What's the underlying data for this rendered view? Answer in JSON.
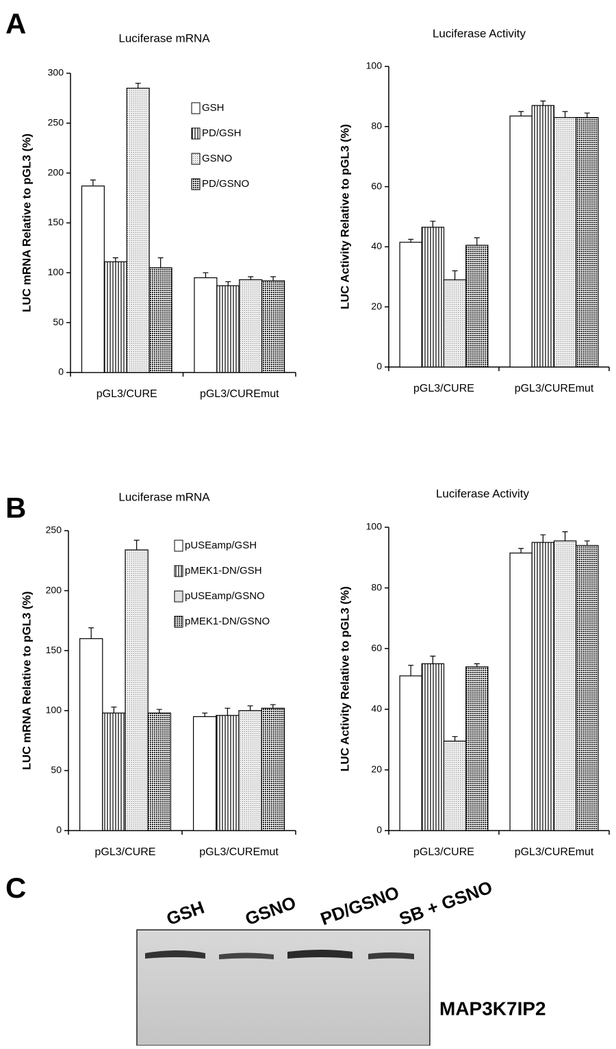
{
  "panels": [
    "A",
    "B",
    "C"
  ],
  "chart_data": [
    {
      "type": "bar",
      "title": "Luciferase mRNA",
      "ylabel": "LUC mRNA Relative to pGL3 (%)",
      "categories": [
        "pGL3/CURE",
        "pGL3/CUREmut"
      ],
      "ylim": [
        0,
        300
      ],
      "yticks": [
        0,
        50,
        100,
        150,
        200,
        250,
        300
      ],
      "series": [
        {
          "name": "GSH",
          "pattern": "open",
          "values": [
            187,
            95
          ],
          "errors": [
            6,
            5
          ]
        },
        {
          "name": "PD/GSH",
          "pattern": "vertical",
          "values": [
            111,
            87
          ],
          "errors": [
            4,
            4
          ]
        },
        {
          "name": "GSNO",
          "pattern": "dots",
          "values": [
            285,
            93
          ],
          "errors": [
            5,
            3
          ]
        },
        {
          "name": "PD/GSNO",
          "pattern": "grid",
          "values": [
            105,
            92
          ],
          "errors": [
            10,
            4
          ]
        }
      ]
    },
    {
      "type": "bar",
      "title": "Luciferase Activity",
      "ylabel": "LUC Activity Relative to pGL3 (%)",
      "categories": [
        "pGL3/CURE",
        "pGL3/CUREmut"
      ],
      "ylim": [
        0,
        100
      ],
      "yticks": [
        0,
        20,
        40,
        60,
        80,
        100
      ],
      "series": [
        {
          "pattern": "open",
          "values": [
            41.5,
            83.5
          ],
          "errors": [
            1,
            1.5
          ]
        },
        {
          "pattern": "vertical",
          "values": [
            46.5,
            87
          ],
          "errors": [
            2,
            1.5
          ]
        },
        {
          "pattern": "dots",
          "values": [
            29,
            83
          ],
          "errors": [
            3,
            2
          ]
        },
        {
          "pattern": "grid",
          "values": [
            40.5,
            83
          ],
          "errors": [
            2.5,
            1.5
          ]
        }
      ]
    },
    {
      "type": "bar",
      "title": "Luciferase mRNA",
      "ylabel": "LUC mRNA Relative to pGL3 (%)",
      "categories": [
        "pGL3/CURE",
        "pGL3/CUREmut"
      ],
      "ylim": [
        0,
        250
      ],
      "yticks": [
        0,
        50,
        100,
        150,
        200,
        250
      ],
      "series": [
        {
          "name": "pUSEamp/GSH",
          "pattern": "open",
          "values": [
            160,
            95
          ],
          "errors": [
            9,
            3
          ]
        },
        {
          "name": "pMEK1-DN/GSH",
          "pattern": "vertical",
          "values": [
            98,
            96
          ],
          "errors": [
            5,
            6
          ]
        },
        {
          "name": "pUSEamp/GSNO",
          "pattern": "dots",
          "values": [
            234,
            100
          ],
          "errors": [
            8,
            4
          ]
        },
        {
          "name": "pMEK1-DN/GSNO",
          "pattern": "grid",
          "values": [
            98,
            102
          ],
          "errors": [
            3,
            3
          ]
        }
      ]
    },
    {
      "type": "bar",
      "title": "Luciferase Activity",
      "ylabel": "LUC Activity Relative to pGL3 (%)",
      "categories": [
        "pGL3/CURE",
        "pGL3/CUREmut"
      ],
      "ylim": [
        0,
        100
      ],
      "yticks": [
        0,
        20,
        40,
        60,
        80,
        100
      ],
      "series": [
        {
          "pattern": "open",
          "values": [
            51,
            91.5
          ],
          "errors": [
            3.5,
            1.5
          ]
        },
        {
          "pattern": "vertical",
          "values": [
            55,
            95
          ],
          "errors": [
            2.5,
            2.5
          ]
        },
        {
          "pattern": "dots",
          "values": [
            29.5,
            95.5
          ],
          "errors": [
            1.5,
            3
          ]
        },
        {
          "pattern": "grid",
          "values": [
            54,
            94
          ],
          "errors": [
            1,
            1.5
          ]
        }
      ]
    }
  ],
  "blot": {
    "lanes": [
      "GSH",
      "GSNO",
      "PD/GSNO",
      "SB + GSNO"
    ],
    "protein": "MAP3K7IP2"
  }
}
